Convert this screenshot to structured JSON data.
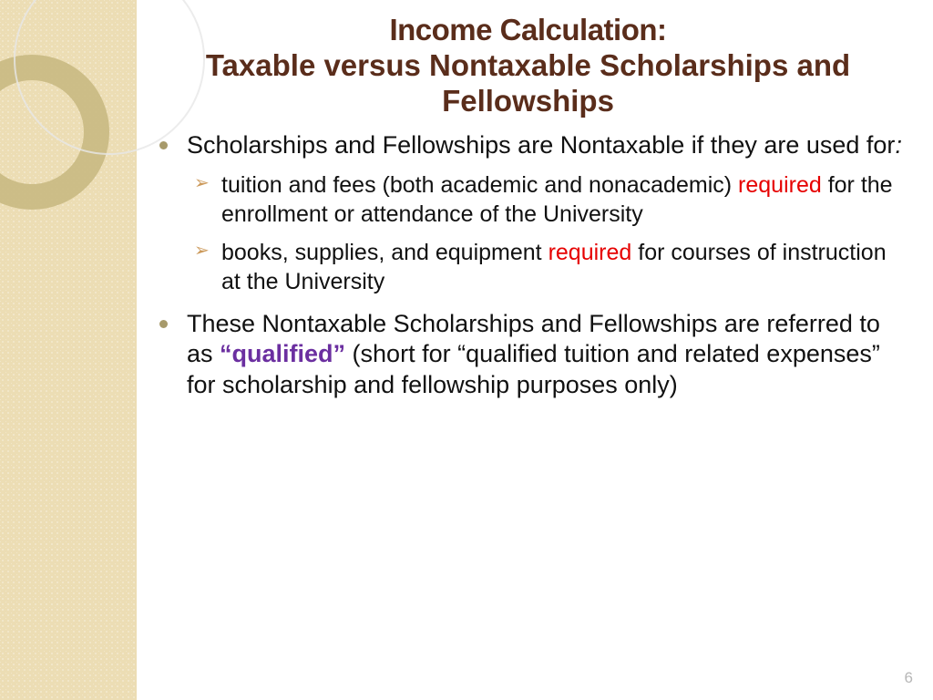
{
  "colors": {
    "title": "#5a2d1b",
    "body_text": "#111111",
    "bullet_l1": "#a79a6b",
    "arrow": "#cc9a5b",
    "highlight_red": "#e60000",
    "highlight_purple": "#6b2fa0",
    "side_band": "#ecddb4",
    "ring_thick": "#c9b982",
    "ring_thin": "#e7e7e7",
    "pagenum": "#b7b7b7",
    "background": "#ffffff"
  },
  "typography": {
    "title_fontsize": 33,
    "body_fontsize": 27,
    "sub_fontsize": 25,
    "pagenum_fontsize": 17,
    "font_family": "Arial"
  },
  "title": {
    "line1": "Income Calculation:",
    "line2": "Taxable versus Nontaxable Scholarships and Fellowships"
  },
  "bullets": {
    "b1": {
      "pre": "Scholarships and Fellowships are Nontaxable if they are used for",
      "colon": ":"
    },
    "sub1": {
      "pre": "tuition and fees (both academic and nonacademic) ",
      "red": "required",
      "post": " for the enrollment or attendance of the University"
    },
    "sub2": {
      "pre": "books, supplies, and equipment ",
      "red": "required",
      "post": " for courses of instruction at the University"
    },
    "b2": {
      "pre": "These Nontaxable Scholarships and Fellowships are referred to as ",
      "purple": "“qualified”",
      "post": " (short for “qualified tuition and related expenses” for scholarship and fellowship purposes only)"
    }
  },
  "page_number": "6"
}
